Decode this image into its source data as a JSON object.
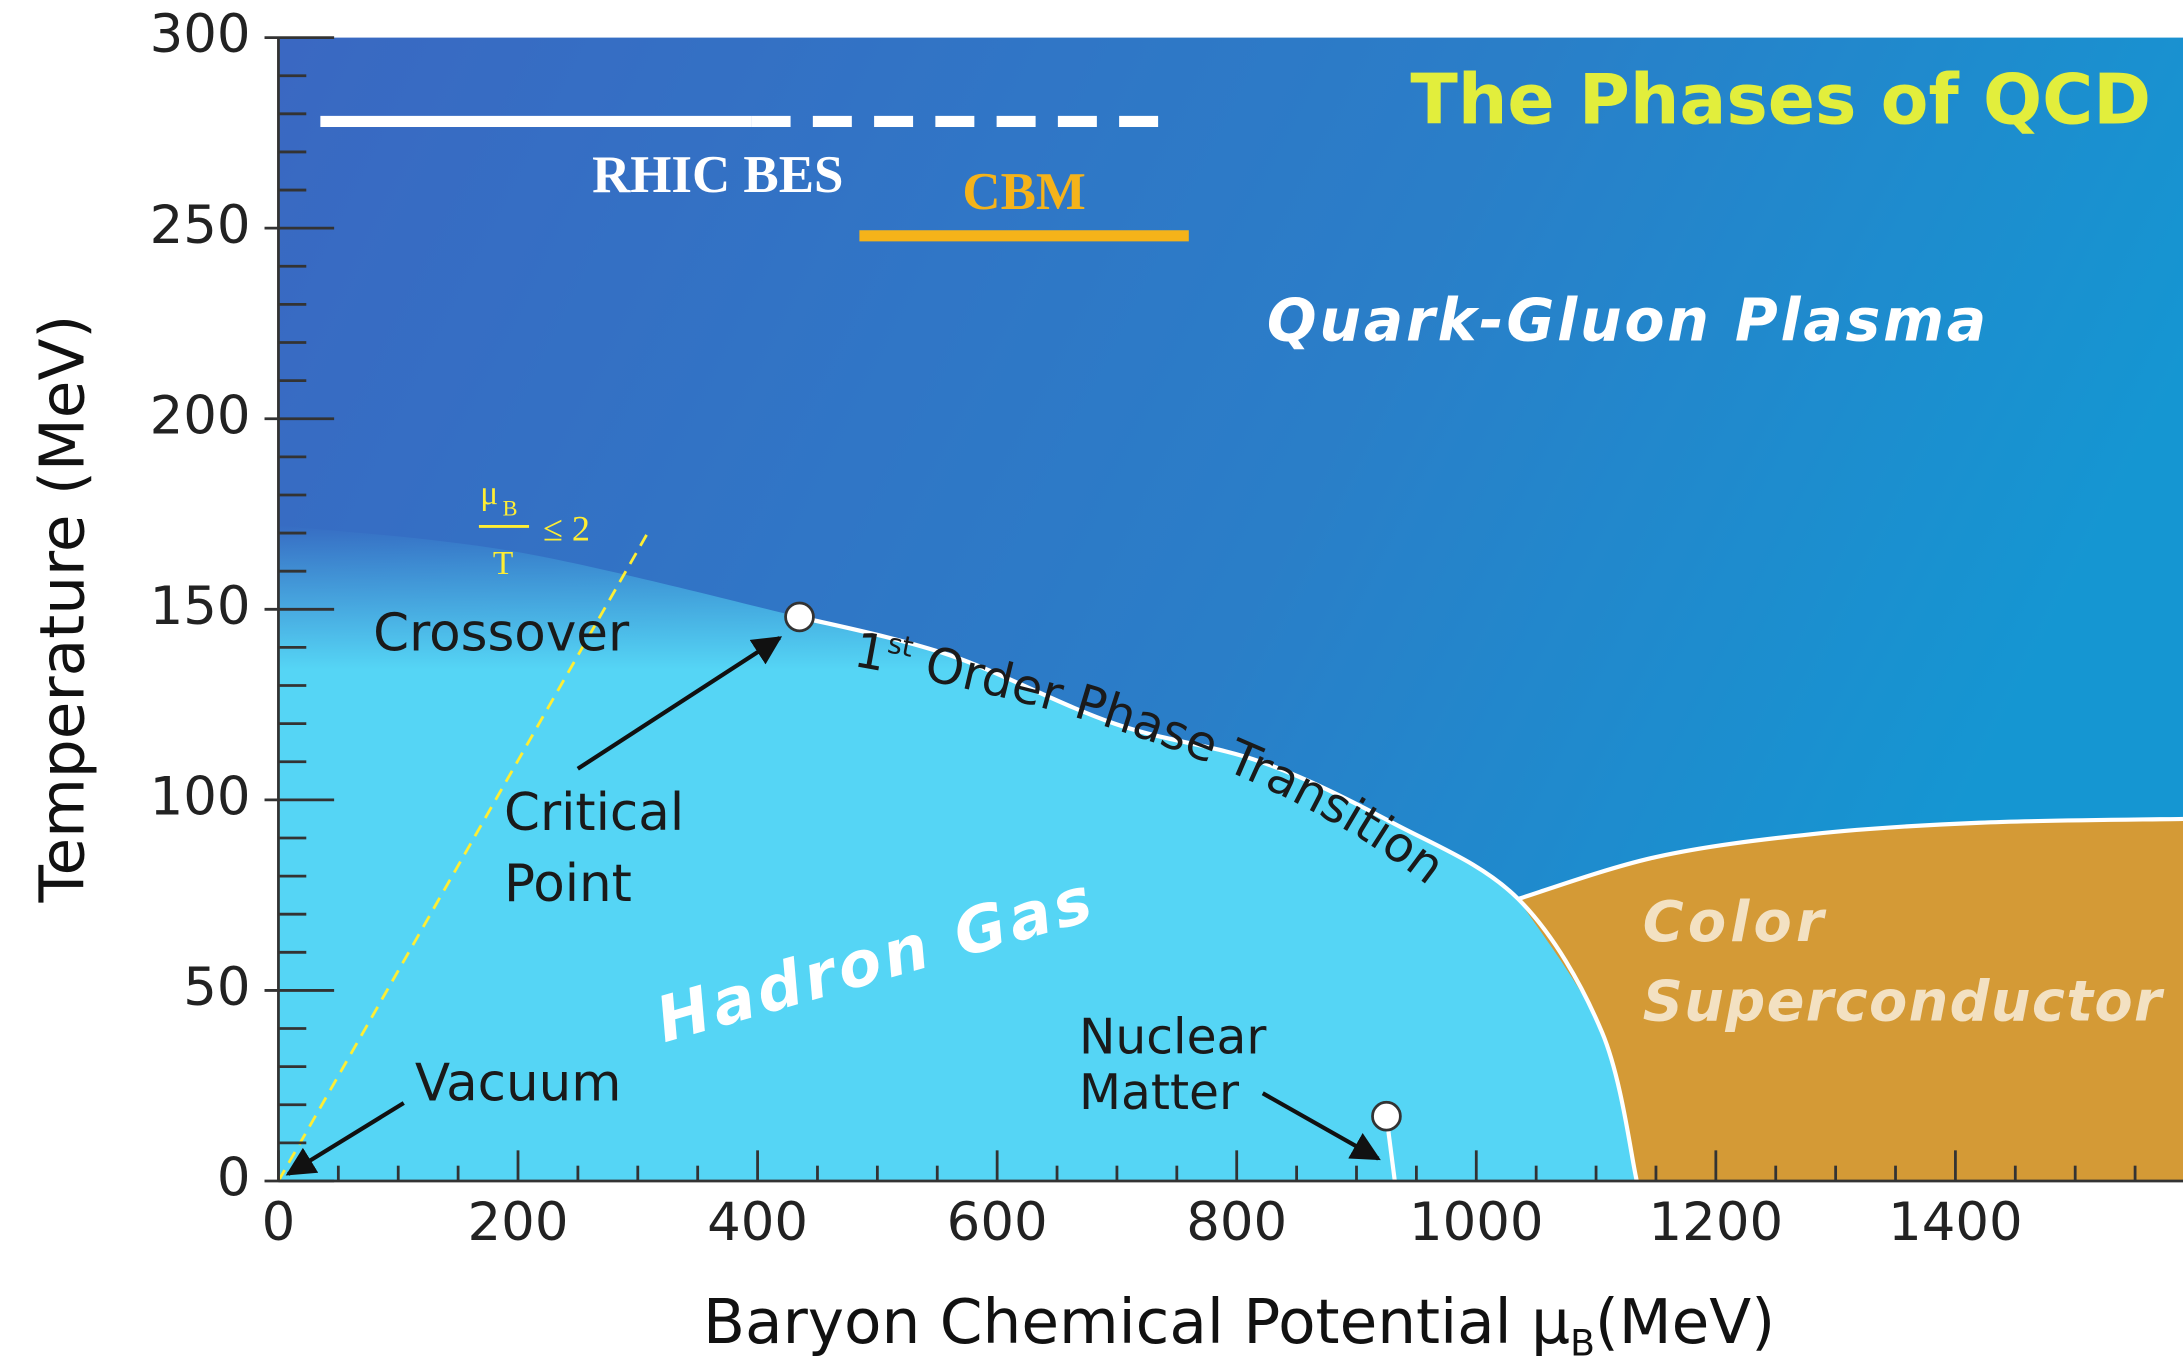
{
  "chart_data": {
    "type": "phase-diagram",
    "title": "The Phases of QCD",
    "xlabel": "Baryon Chemical Potential μ",
    "xlabel_sub": "B",
    "xlabel_unit": "(MeV)",
    "ylabel": "Temperature (MeV)",
    "xlim": [
      0,
      1590
    ],
    "ylim": [
      0,
      300
    ],
    "xticks": [
      0,
      200,
      400,
      600,
      800,
      1000,
      1200,
      1400
    ],
    "yticks": [
      0,
      50,
      100,
      150,
      200,
      250,
      300
    ],
    "minor_xticks": [
      50,
      100,
      150,
      250,
      300,
      350,
      450,
      500,
      550,
      650,
      700,
      750,
      850,
      900,
      950,
      1050,
      1100,
      1150,
      1250,
      1300,
      1350,
      1450,
      1500,
      1550
    ],
    "minor_yticks": [
      10,
      20,
      30,
      40,
      60,
      70,
      80,
      90,
      110,
      120,
      130,
      140,
      160,
      170,
      180,
      190,
      210,
      220,
      230,
      240,
      260,
      270,
      280,
      290
    ],
    "crossover_edge": {
      "x": [
        0,
        0,
        200,
        435
      ],
      "y": [
        0,
        172,
        165,
        148
      ]
    },
    "phase_boundary": {
      "color": "#ffffff",
      "x": [
        435,
        560,
        698,
        820,
        930,
        1035,
        1105,
        1134
      ],
      "y": [
        148,
        138,
        120,
        110,
        94,
        74,
        39,
        0
      ]
    },
    "superconductor_boundary": {
      "color": "#ffffff",
      "x": [
        1035,
        1150,
        1280,
        1420,
        1590
      ],
      "y": [
        74,
        85,
        91,
        94,
        95
      ]
    },
    "mu_over_t_line": {
      "color": "#ffee33",
      "numerator": "μ",
      "numerator_sub": "B",
      "denominator": "T",
      "relation": "≤ 2",
      "x": [
        0,
        310
      ],
      "y": [
        0,
        171
      ]
    },
    "beams": [
      {
        "label": "RHIC BES",
        "color": "#ffffff",
        "y": 278,
        "solid": [
          35,
          395
        ],
        "dashed": [
          395,
          745
        ]
      },
      {
        "label": "CBM",
        "color": "#f5b31a",
        "y": 248,
        "solid": [
          485,
          760
        ]
      }
    ],
    "points": [
      {
        "label": [
          "Critical",
          "Point"
        ],
        "x": 435,
        "y": 148
      },
      {
        "label": [
          "Nuclear",
          "Matter"
        ],
        "x": 925,
        "y": 17
      }
    ],
    "regions": {
      "qgp": "Quark-Gluon Plasma",
      "hadron": "Hadron Gas",
      "crossover": "Crossover",
      "vacuum": "Vacuum",
      "superconductor": [
        "Color",
        "Superconductor"
      ],
      "transition": {
        "text": "1",
        "sup": "st",
        "rest": " Order Phase Transition"
      }
    }
  }
}
